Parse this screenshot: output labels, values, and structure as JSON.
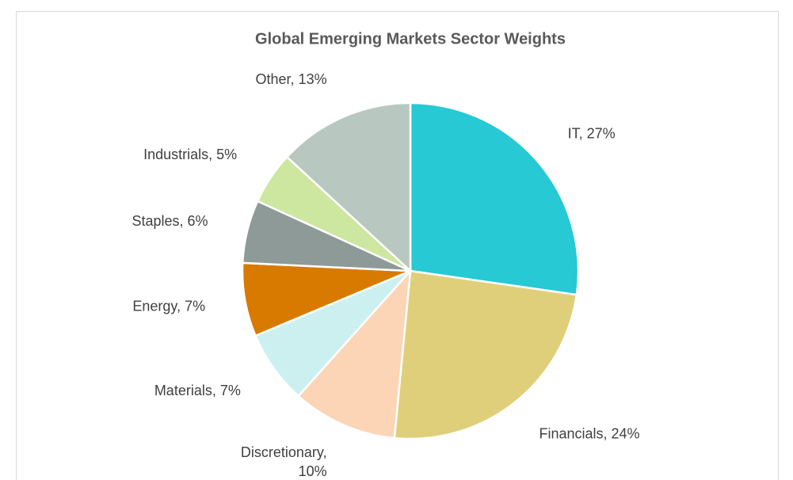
{
  "chart_data": {
    "type": "pie",
    "title": "Global Emerging Markets Sector Weights",
    "categories": [
      "IT",
      "Financials",
      "Discretionary",
      "Materials",
      "Energy",
      "Staples",
      "Industrials",
      "Other"
    ],
    "values": [
      27,
      24,
      10,
      7,
      7,
      6,
      5,
      13
    ],
    "value_labels": [
      "IT, 27%",
      "Financials, 24%",
      "Discretionary, 10%",
      "Materials, 7%",
      "Energy, 7%",
      "Staples, 6%",
      "Industrials, 5%",
      "Other, 13%"
    ],
    "colors": [
      "#26c9d4",
      "#e0cf7a",
      "#fbd5b5",
      "#ccf0f0",
      "#d97a00",
      "#8e9a98",
      "#cde6a0",
      "#b8c8c0"
    ]
  }
}
